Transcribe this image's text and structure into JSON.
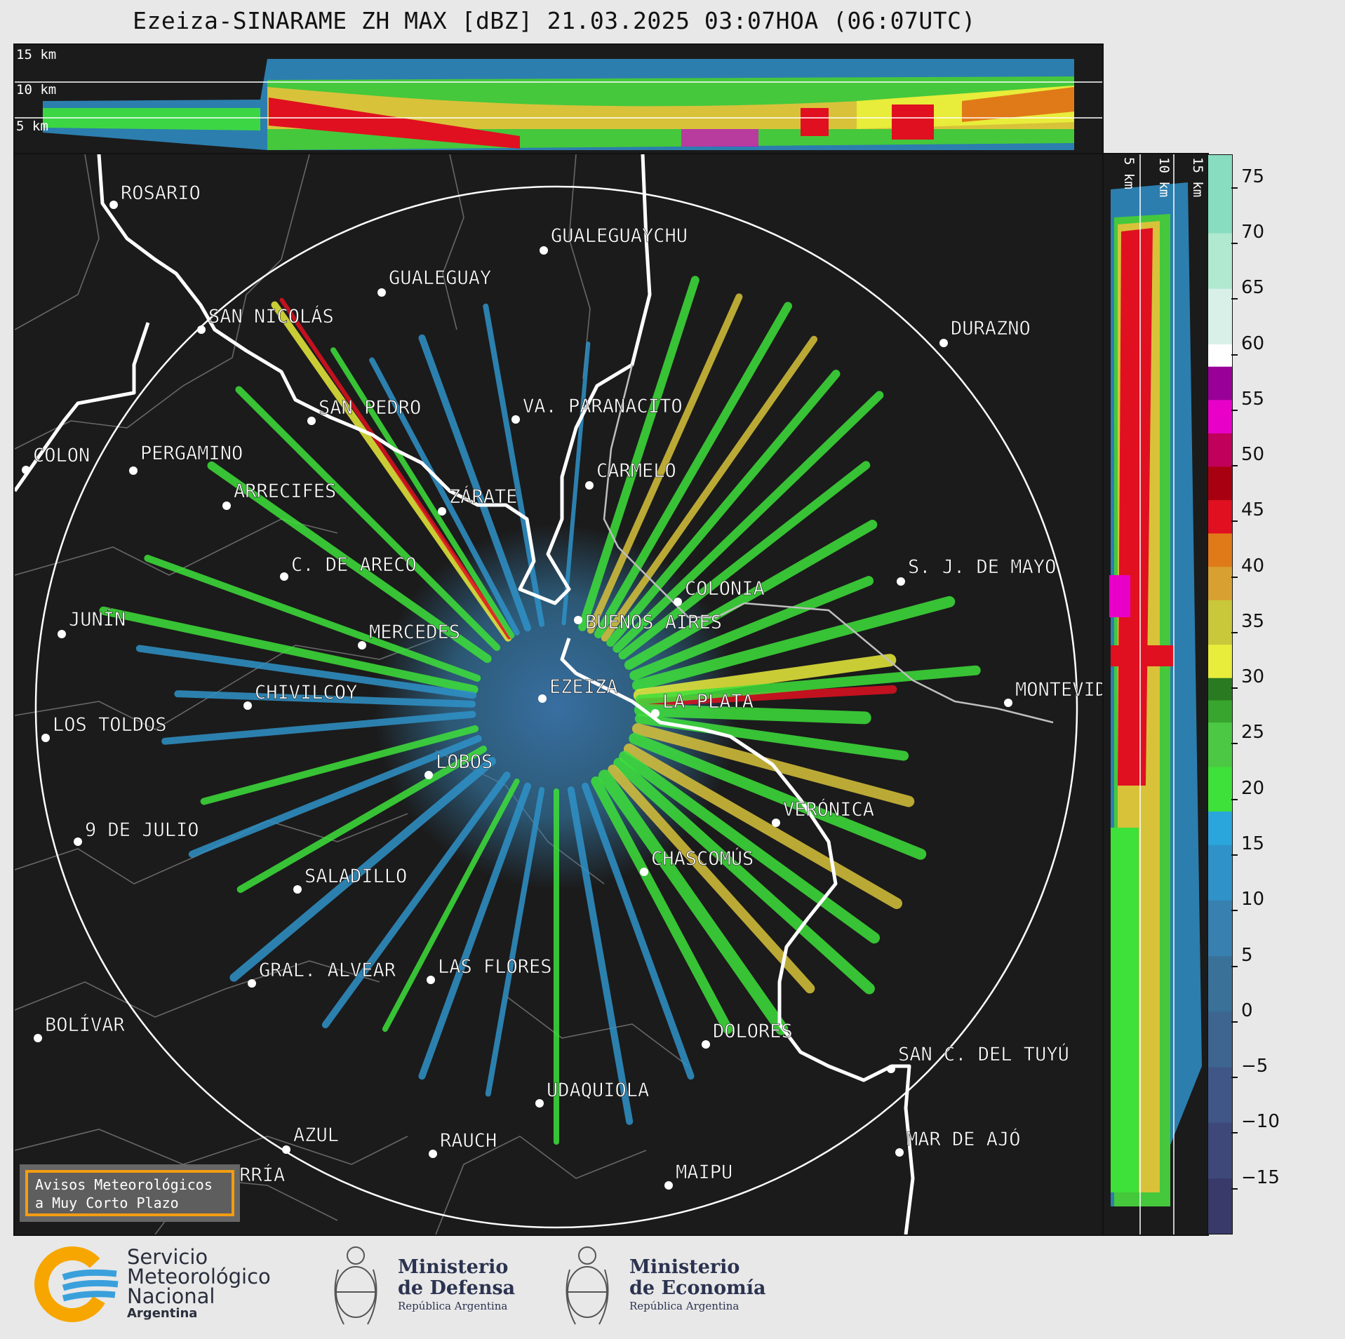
{
  "title": "Ezeiza-SINARAME ZH MAX [dBZ] 21.03.2025 03:07HOA (06:07UTC)",
  "top_panel": {
    "labels": [
      "15 km",
      "10 km",
      "5 km"
    ]
  },
  "side_panel": {
    "labels": [
      "5 km",
      "10 km",
      "15 km"
    ]
  },
  "cities": [
    {
      "id": "rosario",
      "name": "ROSARIO"
    },
    {
      "id": "gualeguaychu",
      "name": "GUALEGUAYCHU"
    },
    {
      "id": "gualeguay",
      "name": "GUALEGUAY"
    },
    {
      "id": "san-nicolas",
      "name": "SAN NICOLÁS"
    },
    {
      "id": "durazno",
      "name": "DURAZNO"
    },
    {
      "id": "san-pedro",
      "name": "SAN PEDRO"
    },
    {
      "id": "va-paranacito",
      "name": "VA. PARANACITO"
    },
    {
      "id": "colon",
      "name": "COLON"
    },
    {
      "id": "pergamino",
      "name": "PERGAMINO"
    },
    {
      "id": "carmelo",
      "name": "CARMELO"
    },
    {
      "id": "arrecifes",
      "name": "ARRECIFES"
    },
    {
      "id": "zarate",
      "name": "ZÁRATE"
    },
    {
      "id": "c-de-areco",
      "name": "C. DE ARECO"
    },
    {
      "id": "s-j-de-mayo",
      "name": "S. J. DE MAYO"
    },
    {
      "id": "colonia",
      "name": "COLONIA"
    },
    {
      "id": "junin",
      "name": "JUNÍN"
    },
    {
      "id": "buenos-aires",
      "name": "BUENOS AIRES"
    },
    {
      "id": "mercedes",
      "name": "MERCEDES"
    },
    {
      "id": "ezeiza",
      "name": "EZEIZA"
    },
    {
      "id": "montevideo",
      "name": "MONTEVIDEO"
    },
    {
      "id": "chivilcoy",
      "name": "CHIVILCOY"
    },
    {
      "id": "la-plata",
      "name": "LA PLATA"
    },
    {
      "id": "los-toldos",
      "name": "LOS TOLDOS"
    },
    {
      "id": "lobos",
      "name": "LOBOS"
    },
    {
      "id": "veronica",
      "name": "VERÓNICA"
    },
    {
      "id": "9-de-julio",
      "name": "9 DE JULIO"
    },
    {
      "id": "chascomus",
      "name": "CHASCOMÚS"
    },
    {
      "id": "saladillo",
      "name": "SALADILLO"
    },
    {
      "id": "gral-alvear",
      "name": "GRAL. ALVEAR"
    },
    {
      "id": "las-flores",
      "name": "LAS FLORES"
    },
    {
      "id": "bolivar",
      "name": "BOLÍVAR"
    },
    {
      "id": "dolores",
      "name": "DOLORES"
    },
    {
      "id": "san-c-del-tuyu",
      "name": "SAN C. DEL TUYÚ"
    },
    {
      "id": "udaquiola",
      "name": "UDAQUIOLA"
    },
    {
      "id": "azul",
      "name": "AZUL"
    },
    {
      "id": "rauch",
      "name": "RAUCH"
    },
    {
      "id": "mar-de-ajo",
      "name": "MAR DE AJÓ"
    },
    {
      "id": "olavarria",
      "name": "OLAVARRÍA"
    },
    {
      "id": "maipu",
      "name": "MAIPU"
    }
  ],
  "colorbar": {
    "unit": "dBZ",
    "min": -20,
    "max": 77,
    "ticks": [
      "75",
      "70",
      "65",
      "60",
      "55",
      "50",
      "45",
      "40",
      "35",
      "30",
      "25",
      "20",
      "15",
      "10",
      "5",
      "0",
      "−5",
      "−10",
      "−15"
    ],
    "tick_values": [
      75,
      70,
      65,
      60,
      55,
      50,
      45,
      40,
      35,
      30,
      25,
      20,
      15,
      10,
      5,
      0,
      -5,
      -10,
      -15
    ],
    "stops": [
      {
        "from": -20,
        "to": -15,
        "color": "#3a3a6a"
      },
      {
        "from": -15,
        "to": -10,
        "color": "#3e4879"
      },
      {
        "from": -10,
        "to": -5,
        "color": "#3f5686"
      },
      {
        "from": -5,
        "to": 0,
        "color": "#3d6590"
      },
      {
        "from": 0,
        "to": 5,
        "color": "#3a7199"
      },
      {
        "from": 5,
        "to": 10,
        "color": "#3780b0"
      },
      {
        "from": 10,
        "to": 15,
        "color": "#2f92c8"
      },
      {
        "from": 15,
        "to": 18,
        "color": "#2aa6dc"
      },
      {
        "from": 18,
        "to": 22,
        "color": "#3ee03a"
      },
      {
        "from": 22,
        "to": 26,
        "color": "#4cc844"
      },
      {
        "from": 26,
        "to": 28,
        "color": "#38a52e"
      },
      {
        "from": 28,
        "to": 30,
        "color": "#2a7a22"
      },
      {
        "from": 30,
        "to": 33,
        "color": "#e8ec3a"
      },
      {
        "from": 33,
        "to": 37,
        "color": "#c8c83a"
      },
      {
        "from": 37,
        "to": 40,
        "color": "#d8a030"
      },
      {
        "from": 40,
        "to": 43,
        "color": "#e07a18"
      },
      {
        "from": 43,
        "to": 46,
        "color": "#e01020"
      },
      {
        "from": 46,
        "to": 49,
        "color": "#a80010"
      },
      {
        "from": 49,
        "to": 52,
        "color": "#c0005a"
      },
      {
        "from": 52,
        "to": 55,
        "color": "#e800c8"
      },
      {
        "from": 55,
        "to": 58,
        "color": "#980098"
      },
      {
        "from": 58,
        "to": 60,
        "color": "#ffffff"
      },
      {
        "from": 60,
        "to": 65,
        "color": "#d8f0e8"
      },
      {
        "from": 65,
        "to": 70,
        "color": "#b0e8d0"
      },
      {
        "from": 70,
        "to": 77,
        "color": "#88dcc0"
      }
    ]
  },
  "warning_box": {
    "line1": "Avisos Meteorológicos",
    "line2": "a Muy Corto Plazo",
    "border_color": "#f39c12"
  },
  "footer": {
    "smn": {
      "line1": "Servicio",
      "line2": "Meteorológico",
      "line3": "Nacional",
      "line4": "Argentina"
    },
    "defensa": {
      "line1": "Ministerio",
      "line2": "de Defensa",
      "line3": "República Argentina"
    },
    "economia": {
      "line1": "Ministerio",
      "line2": "de Economía",
      "line3": "República Argentina"
    }
  }
}
